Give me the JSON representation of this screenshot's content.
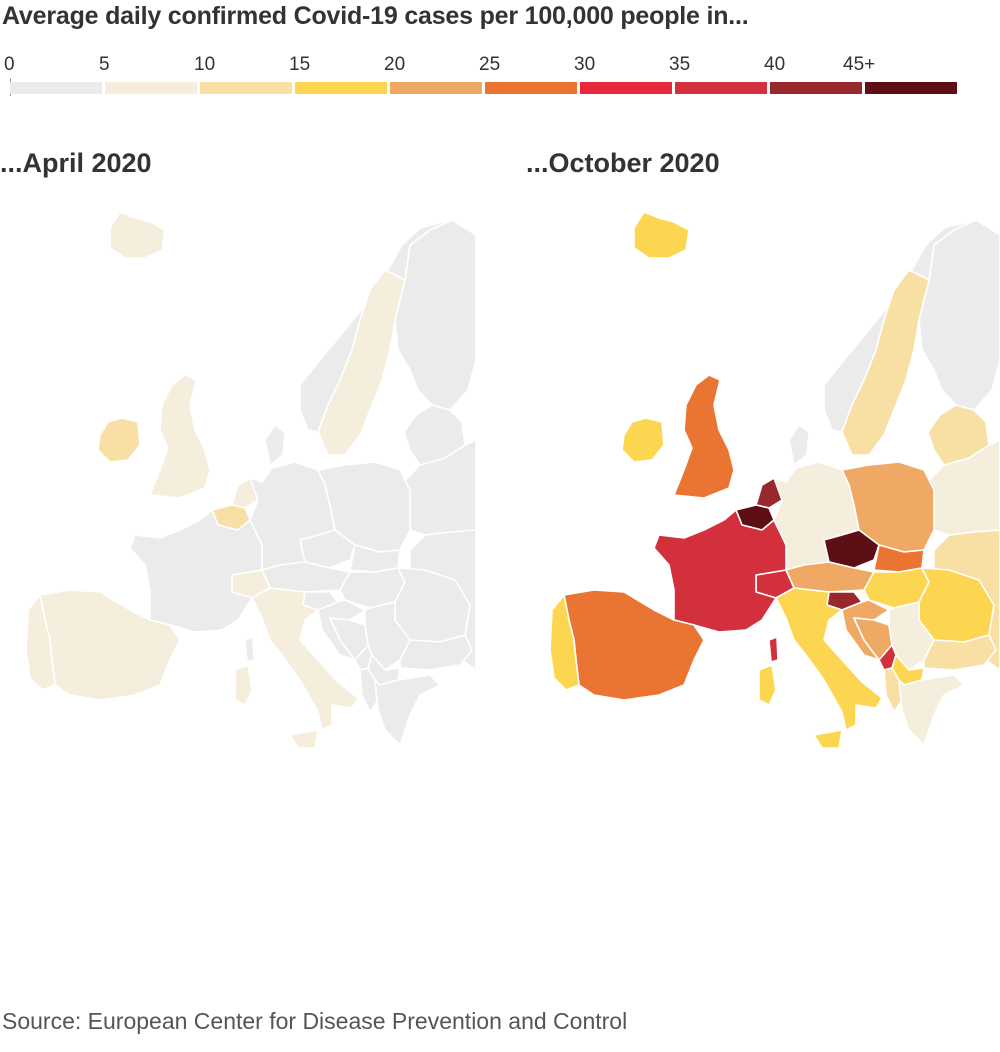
{
  "title": "Average daily confirmed Covid-19 cases per 100,000 people in...",
  "legend": {
    "labels": [
      "0",
      "5",
      "10",
      "15",
      "20",
      "25",
      "30",
      "35",
      "40",
      "45+"
    ],
    "colors": [
      "#ebebec",
      "#f6eedc",
      "#f8dfa4",
      "#fdd651",
      "#f0a964",
      "#ea7532",
      "#e8283c",
      "#d3303d",
      "#98282b",
      "#5e0f16"
    ]
  },
  "panels": [
    {
      "title": "...April 2020",
      "fills": {
        "default": "#ebebec",
        "iceland": "#f6eedc",
        "ireland": "#f8dfa4",
        "uk": "#f6eedc",
        "norway": "#ebebec",
        "sweden": "#f6eedc",
        "finland": "#ebebec",
        "denmark": "#ebebec",
        "netherlands": "#f6eedc",
        "belgium": "#f8dfa4",
        "france": "#ebebec",
        "spain": "#f6eedc",
        "portugal": "#f6eedc",
        "germany": "#ebebec",
        "switzerland": "#f6eedc",
        "italy": "#f6eedc",
        "austria": "#ebebec",
        "czechia": "#ebebec",
        "poland": "#ebebec",
        "slovakia": "#ebebec",
        "hungary": "#ebebec",
        "slovenia": "#ebebec",
        "croatia": "#ebebec",
        "bosnia": "#ebebec",
        "serbia": "#ebebec",
        "montenegro": "#ebebec",
        "albania": "#ebebec",
        "northmacedonia": "#ebebec",
        "greece": "#ebebec",
        "bulgaria": "#ebebec",
        "romania": "#ebebec",
        "baltics": "#ebebec",
        "belarus": "#ebebec",
        "ukraine": "#ebebec",
        "corsica": "#ebebec",
        "sardinia": "#f6eedc",
        "sicily": "#f6eedc"
      }
    },
    {
      "title": "...October 2020",
      "fills": {
        "default": "#ebebec",
        "iceland": "#fdd651",
        "ireland": "#fdd651",
        "uk": "#ea7532",
        "norway": "#ebebec",
        "sweden": "#f8dfa4",
        "finland": "#ebebec",
        "denmark": "#ebebec",
        "netherlands": "#98282b",
        "belgium": "#5e0f16",
        "france": "#d3303d",
        "spain": "#ea7532",
        "portugal": "#fdd651",
        "germany": "#f6eedc",
        "switzerland": "#d3303d",
        "italy": "#fdd651",
        "austria": "#f0a964",
        "czechia": "#5e0f16",
        "poland": "#f0a964",
        "slovakia": "#ea7532",
        "hungary": "#fdd651",
        "slovenia": "#98282b",
        "croatia": "#f0a964",
        "bosnia": "#f0a964",
        "serbia": "#f6eedc",
        "montenegro": "#d3303d",
        "albania": "#f8dfa4",
        "northmacedonia": "#fdd651",
        "greece": "#f6eedc",
        "bulgaria": "#f8dfa4",
        "romania": "#fdd651",
        "baltics": "#f8dfa4",
        "belarus": "#f6eedc",
        "ukraine": "#f8dfa4",
        "corsica": "#d3303d",
        "sardinia": "#fdd651",
        "sicily": "#fdd651"
      }
    }
  ],
  "source": "Source: European Center for Disease Prevention and Control"
}
